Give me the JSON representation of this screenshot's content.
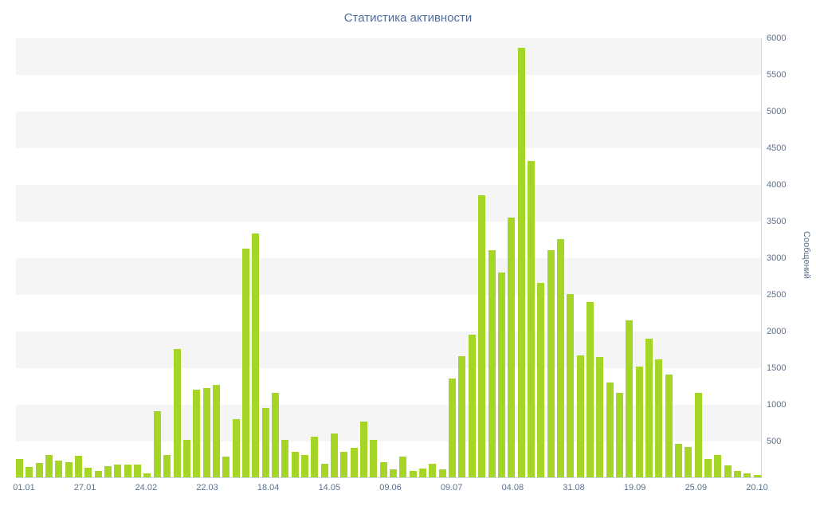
{
  "title": "Статистика активности",
  "y_axis_title": "Сообщений",
  "colors": {
    "bar": "#a5d627",
    "band": "#f5f5f5",
    "axis_line": "#ccd6eb",
    "text": "#4d6d9b",
    "tick_text": "#5a7291",
    "background": "#ffffff"
  },
  "chart_data": {
    "type": "bar",
    "title": "Статистика активности",
    "xlabel": "",
    "ylabel": "Сообщений",
    "ylim": [
      0,
      6000
    ],
    "grid": "horizontal-bands",
    "legend": "none",
    "y_ticks": [
      6000,
      5500,
      5000,
      4500,
      4000,
      3500,
      3000,
      2500,
      2000,
      1500,
      1000,
      500
    ],
    "x_tick_labels": [
      "01.01",
      "27.01",
      "24.02",
      "22.03",
      "18.04",
      "14.05",
      "09.06",
      "09.07",
      "04.08",
      "31.08",
      "19.09",
      "25.09",
      "20.10"
    ],
    "values": [
      250,
      140,
      200,
      300,
      230,
      210,
      290,
      130,
      90,
      150,
      175,
      170,
      170,
      60,
      900,
      300,
      1750,
      510,
      1200,
      1215,
      1260,
      280,
      800,
      3120,
      3330,
      950,
      1150,
      510,
      350,
      310,
      560,
      190,
      600,
      350,
      400,
      760,
      510,
      210,
      110,
      280,
      90,
      120,
      185,
      110,
      1350,
      1650,
      1950,
      3850,
      3100,
      2800,
      3550,
      5870,
      4320,
      2660,
      3100,
      3260,
      2500,
      1670,
      2400,
      1640,
      1300,
      1150,
      2140,
      1510,
      1890,
      1610,
      1400,
      460,
      410,
      1150,
      250,
      300,
      160,
      90,
      50,
      30
    ]
  }
}
